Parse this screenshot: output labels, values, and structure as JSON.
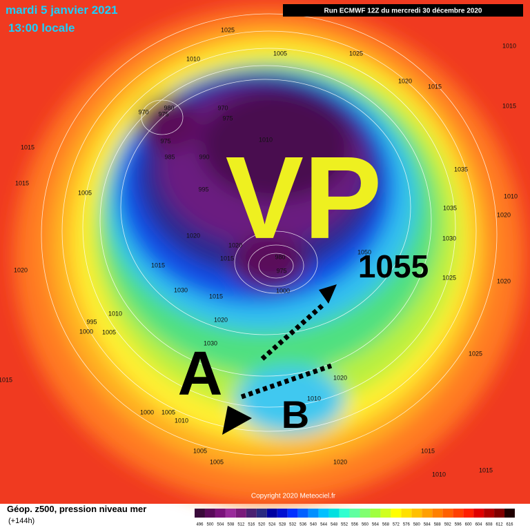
{
  "header": {
    "date": "mardi 5 janvier 2021",
    "time": "13:00 locale",
    "run": "Run ECMWF 12Z du mercredi 30 décembre 2020"
  },
  "annotations": {
    "vortex": "VP",
    "high": "1055",
    "point_a": "A",
    "point_b": "B"
  },
  "pressure_labels": [
    "1025",
    "1005",
    "1025",
    "1010",
    "1010",
    "1020",
    "1015",
    "1015",
    "970",
    "975",
    "980",
    "970",
    "975",
    "1010",
    "975",
    "985",
    "990",
    "995",
    "1015",
    "1015",
    "1005",
    "1035",
    "1035",
    "1010",
    "1020",
    "1020",
    "1020",
    "1015",
    "980",
    "975",
    "1000",
    "1015",
    "1030",
    "1015",
    "1020",
    "1010",
    "995",
    "1000",
    "1005",
    "1020",
    "1030",
    "1050",
    "1030",
    "1025",
    "1020",
    "1025",
    "1020",
    "1010",
    "1000",
    "1005",
    "1010",
    "1005",
    "1005",
    "1020",
    "1015",
    "1010",
    "1015",
    "1015"
  ],
  "footer": {
    "copyright": "Copyright 2020 Meteociel.fr",
    "title": "Géop. z500, pression niveau mer",
    "lead": "(+144h)"
  },
  "legend": {
    "labels": [
      "496",
      "500",
      "504",
      "508",
      "512",
      "516",
      "520",
      "524",
      "528",
      "532",
      "536",
      "540",
      "544",
      "548",
      "552",
      "556",
      "560",
      "564",
      "568",
      "572",
      "576",
      "580",
      "584",
      "588",
      "592",
      "596",
      "600",
      "604",
      "608",
      "612",
      "616"
    ],
    "colors": [
      "#3a0a3a",
      "#5a0a5a",
      "#7a127a",
      "#9a2a9a",
      "#7a1a7a",
      "#4a2070",
      "#2a2a80",
      "#0000a0",
      "#0010d0",
      "#0030ff",
      "#0060ff",
      "#0090ff",
      "#00c0ff",
      "#00e0e0",
      "#30ffd0",
      "#60ffa0",
      "#80ff70",
      "#a0ff40",
      "#d0ff20",
      "#ffff00",
      "#ffe000",
      "#ffc000",
      "#ffa000",
      "#ff8000",
      "#ff6000",
      "#ff4000",
      "#ff2000",
      "#e00000",
      "#b00000",
      "#800000",
      "#200000"
    ]
  }
}
